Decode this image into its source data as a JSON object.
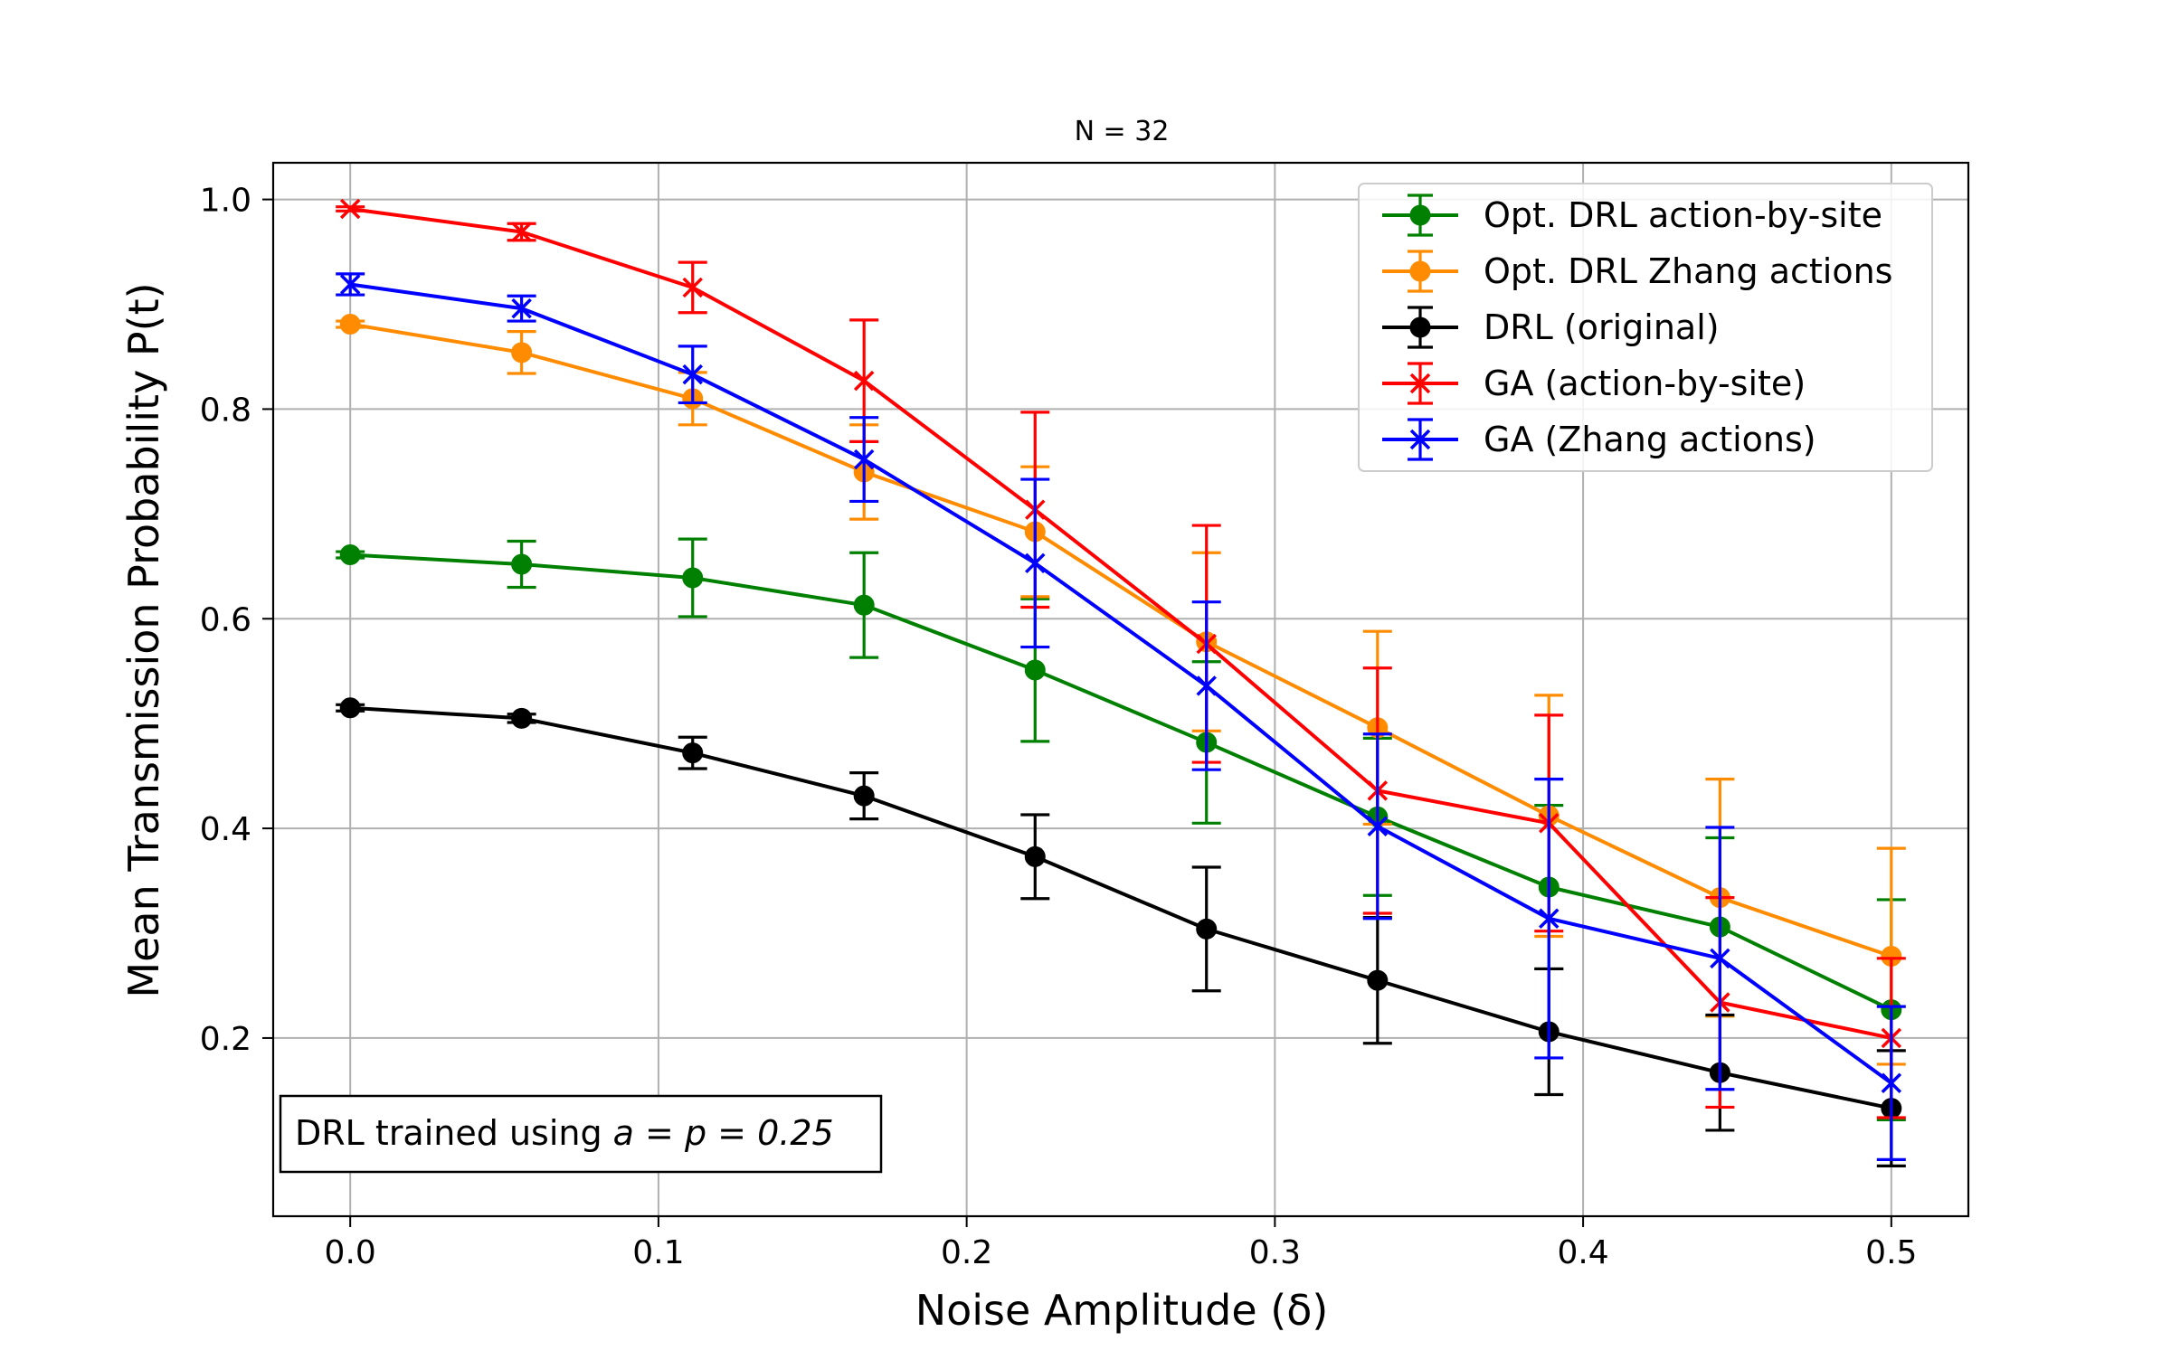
{
  "chart_data": {
    "type": "line",
    "title": "N = 32",
    "xlabel": "Noise Amplitude (δ)",
    "ylabel": "Mean Transmission Probability P(t)",
    "xlim": [
      -0.025,
      0.525
    ],
    "ylim": [
      0.03,
      1.035
    ],
    "grid": true,
    "xticks": [
      0.0,
      0.1,
      0.2,
      0.3,
      0.4,
      0.5
    ],
    "xtick_labels": [
      "0.0",
      "0.1",
      "0.2",
      "0.3",
      "0.4",
      "0.5"
    ],
    "yticks": [
      0.2,
      0.4,
      0.6,
      0.8,
      1.0
    ],
    "ytick_labels": [
      "0.2",
      "0.4",
      "0.6",
      "0.8",
      "1.0"
    ],
    "legend_position": "top-right",
    "annotation": {
      "prefix": "DRL trained using ",
      "math": "a = p = 0.25"
    },
    "x": [
      0.0,
      0.0556,
      0.1111,
      0.1667,
      0.2222,
      0.2778,
      0.3333,
      0.3889,
      0.4444,
      0.5
    ],
    "series": [
      {
        "name": "Opt. DRL action-by-site",
        "color": "#008000",
        "marker": "circle",
        "values": [
          0.661,
          0.652,
          0.639,
          0.613,
          0.551,
          0.482,
          0.411,
          0.344,
          0.306,
          0.227
        ],
        "errors": [
          0.003,
          0.022,
          0.037,
          0.05,
          0.068,
          0.077,
          0.075,
          0.078,
          0.085,
          0.105
        ]
      },
      {
        "name": "Opt. DRL Zhang actions",
        "color": "#ff8c00",
        "marker": "circle",
        "values": [
          0.881,
          0.854,
          0.81,
          0.74,
          0.683,
          0.578,
          0.496,
          0.412,
          0.334,
          0.278
        ],
        "errors": [
          0.003,
          0.02,
          0.025,
          0.045,
          0.062,
          0.085,
          0.092,
          0.115,
          0.113,
          0.103
        ]
      },
      {
        "name": "DRL (original)",
        "color": "#000000",
        "marker": "circle",
        "values": [
          0.515,
          0.505,
          0.472,
          0.431,
          0.373,
          0.304,
          0.255,
          0.206,
          0.167,
          0.133
        ],
        "errors": [
          0.003,
          0.004,
          0.015,
          0.022,
          0.04,
          0.059,
          0.06,
          0.06,
          0.055,
          0.055
        ]
      },
      {
        "name": "GA (action-by-site)",
        "color": "#ff0000",
        "marker": "x",
        "values": [
          0.991,
          0.969,
          0.916,
          0.827,
          0.704,
          0.576,
          0.436,
          0.405,
          0.234,
          0.2
        ],
        "errors": [
          0.002,
          0.008,
          0.024,
          0.058,
          0.093,
          0.113,
          0.117,
          0.103,
          0.1,
          0.076
        ]
      },
      {
        "name": "GA (Zhang actions)",
        "color": "#0000ff",
        "marker": "x",
        "values": [
          0.919,
          0.896,
          0.833,
          0.752,
          0.653,
          0.536,
          0.402,
          0.314,
          0.276,
          0.157
        ],
        "errors": [
          0.01,
          0.012,
          0.027,
          0.04,
          0.08,
          0.08,
          0.088,
          0.133,
          0.125,
          0.073
        ]
      }
    ]
  }
}
